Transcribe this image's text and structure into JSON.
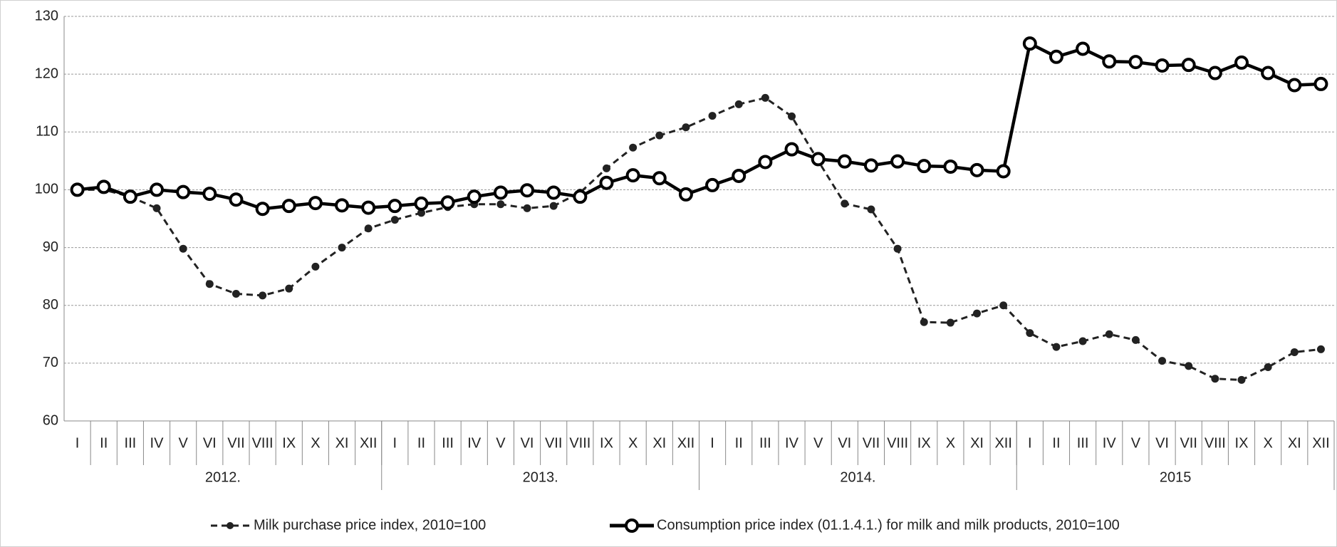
{
  "chart_data": {
    "type": "line",
    "categories": [
      "I",
      "II",
      "III",
      "IV",
      "V",
      "VI",
      "VII",
      "VIII",
      "IX",
      "X",
      "XI",
      "XII",
      "I",
      "II",
      "III",
      "IV",
      "V",
      "VI",
      "VII",
      "VIII",
      "IX",
      "X",
      "XI",
      "XII",
      "I",
      "II",
      "III",
      "IV",
      "V",
      "VI",
      "VII",
      "VIII",
      "IX",
      "X",
      "XI",
      "XII",
      "I",
      "II",
      "III",
      "IV",
      "V",
      "VI",
      "VII",
      "VIII",
      "IX",
      "X",
      "XI",
      "XII"
    ],
    "years": [
      "2012.",
      "2013.",
      "2014.",
      "2015"
    ],
    "series": [
      {
        "name": "Milk purchase price index, 2010=100",
        "color": "#222222",
        "style": "dashed",
        "values": [
          100,
          100,
          98.8,
          96.8,
          89.8,
          83.7,
          82,
          81.7,
          82.9,
          86.7,
          90,
          93.3,
          94.8,
          96,
          97,
          97.5,
          97.5,
          96.8,
          97.2,
          99.5,
          103.7,
          107.3,
          109.4,
          110.8,
          112.8,
          114.8,
          115.9,
          112.7,
          105,
          97.6,
          96.6,
          89.8,
          77.1,
          77,
          78.6,
          80,
          75.2,
          72.8,
          73.8,
          75,
          74,
          70.4,
          69.5,
          67.3,
          67.1,
          69.3,
          71.9,
          72.4
        ]
      },
      {
        "name": "Consumption price index (01.1.4.1.) for milk and milk products, 2010=100",
        "color": "#000000",
        "style": "solid",
        "values": [
          100,
          100.5,
          98.8,
          100,
          99.6,
          99.3,
          98.3,
          96.7,
          97.2,
          97.7,
          97.3,
          96.9,
          97.2,
          97.6,
          97.8,
          98.8,
          99.5,
          99.9,
          99.5,
          98.8,
          101.2,
          102.5,
          102,
          99.2,
          100.8,
          102.4,
          104.8,
          107,
          105.3,
          104.9,
          104.2,
          104.9,
          104.1,
          104,
          103.4,
          103.2,
          125.3,
          123,
          124.4,
          122.2,
          122.1,
          121.5,
          121.6,
          120.2,
          122,
          120.2,
          118.1,
          118.3
        ]
      }
    ],
    "ylim": [
      60,
      130
    ],
    "yticks": [
      60,
      70,
      80,
      90,
      100,
      110,
      120,
      130
    ],
    "grid": true
  }
}
